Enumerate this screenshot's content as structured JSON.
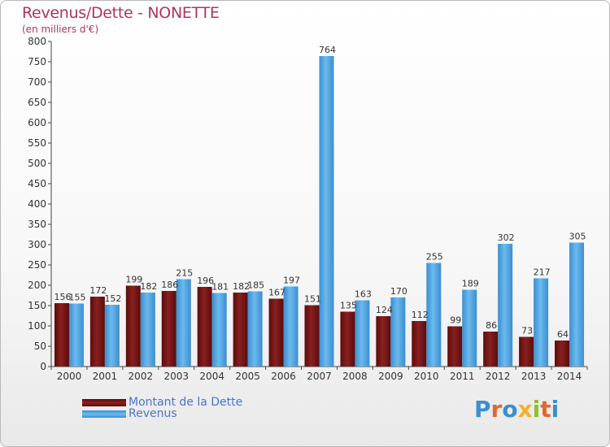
{
  "header": {
    "title": "Revenus/Dette - NONETTE",
    "subtitle": "(en milliers d'€)"
  },
  "legend": {
    "debt_label": "Montant de la Dette",
    "revenue_label": "Revenus"
  },
  "branding": {
    "logo_text": "Proxiti"
  },
  "colors": {
    "debt": "#7a1414",
    "revenue": "#4aa3e3",
    "labels": "#333333"
  },
  "chart_data": {
    "type": "bar",
    "title": "Revenus/Dette - NONETTE",
    "subtitle": "(en milliers d'€)",
    "xlabel": "",
    "ylabel": "",
    "ylim": [
      0,
      800
    ],
    "yticks": [
      0,
      50,
      100,
      150,
      200,
      250,
      300,
      350,
      400,
      450,
      500,
      550,
      600,
      650,
      700,
      750,
      800
    ],
    "categories": [
      "2000",
      "2001",
      "2002",
      "2003",
      "2004",
      "2005",
      "2006",
      "2007",
      "2008",
      "2009",
      "2010",
      "2011",
      "2012",
      "2013",
      "2014"
    ],
    "series": [
      {
        "name": "Montant de la Dette",
        "values": [
          156,
          172,
          199,
          186,
          196,
          182,
          167,
          151,
          135,
          124,
          112,
          99,
          86,
          73,
          64
        ]
      },
      {
        "name": "Revenus",
        "values": [
          155,
          152,
          182,
          215,
          181,
          185,
          197,
          764,
          163,
          170,
          255,
          189,
          302,
          217,
          305
        ]
      }
    ],
    "grid": false,
    "legend_position": "bottom-left"
  }
}
